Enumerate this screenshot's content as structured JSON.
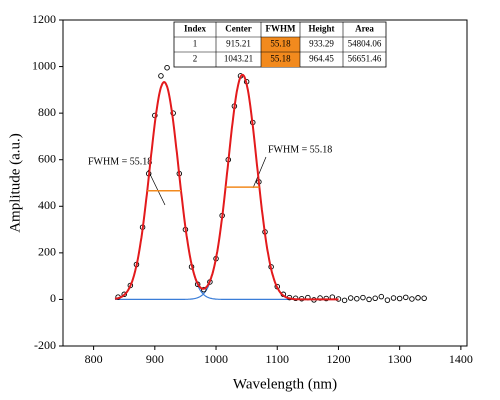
{
  "chart_data": {
    "type": "scatter",
    "xlabel": "Wavelength (nm)",
    "ylabel": "Amplitude (a.u.)",
    "xlim": [
      750,
      1410
    ],
    "ylim": [
      -200,
      1200
    ],
    "xticks": [
      800,
      900,
      1000,
      1100,
      1200,
      1300,
      1400
    ],
    "yticks": [
      -200,
      0,
      200,
      400,
      600,
      800,
      1000,
      1200
    ],
    "color": "#000000",
    "x": [
      840,
      850,
      860,
      870,
      880,
      890,
      900,
      910,
      920,
      930,
      940,
      950,
      960,
      970,
      980,
      990,
      1000,
      1010,
      1020,
      1030,
      1040,
      1050,
      1060,
      1070,
      1080,
      1090,
      1100,
      1110,
      1120,
      1130,
      1140,
      1150,
      1160,
      1170,
      1180,
      1190,
      1200,
      1210,
      1220,
      1230,
      1240,
      1250,
      1260,
      1270,
      1280,
      1290,
      1300,
      1310,
      1320,
      1330,
      1340
    ],
    "values": [
      10,
      22,
      60,
      150,
      310,
      540,
      790,
      960,
      995,
      800,
      540,
      300,
      140,
      65,
      42,
      75,
      175,
      360,
      600,
      830,
      960,
      935,
      760,
      505,
      290,
      140,
      55,
      22,
      8,
      5,
      3,
      8,
      -2,
      6,
      4,
      10,
      2,
      -4,
      6,
      3,
      8,
      0,
      5,
      12,
      -3,
      6,
      4,
      9,
      2,
      7,
      5
    ],
    "fit": {
      "color": "#e31a1c",
      "component_color": "#3a7dd8",
      "marker_color": "#f28a1e",
      "xlim": [
        835,
        1200
      ]
    },
    "annotations": [
      "FWHM = 55.18",
      "FWHM = 55.18"
    ],
    "table": {
      "columns": [
        "Index",
        "Center",
        "FWHM",
        "Height",
        "Area"
      ],
      "rows": [
        [
          1,
          915.21,
          55.18,
          933.29,
          54804.06
        ],
        [
          2,
          1043.21,
          55.18,
          964.45,
          56651.46
        ]
      ],
      "highlight_color": "#f28a1e"
    }
  }
}
